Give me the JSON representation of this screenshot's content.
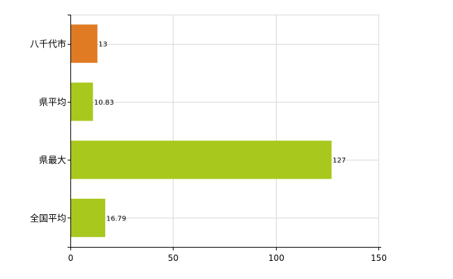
{
  "chart_data": {
    "type": "bar",
    "orientation": "horizontal",
    "categories": [
      "八千代市",
      "県平均",
      "県最大",
      "全国平均"
    ],
    "values": [
      13,
      10.83,
      127,
      16.79
    ],
    "value_labels": [
      "13",
      "10.83",
      "127",
      "16.79"
    ],
    "bar_colors": [
      "#e07b24",
      "#a8c81e",
      "#a8c81e",
      "#a8c81e"
    ],
    "xlim": [
      0,
      150
    ],
    "xticks": [
      0,
      50,
      100,
      150
    ],
    "xtick_labels": [
      "0",
      "50",
      "100",
      "150"
    ],
    "grid": true,
    "grid_color": "#d9d9d9",
    "title": "",
    "xlabel": "",
    "ylabel": ""
  }
}
